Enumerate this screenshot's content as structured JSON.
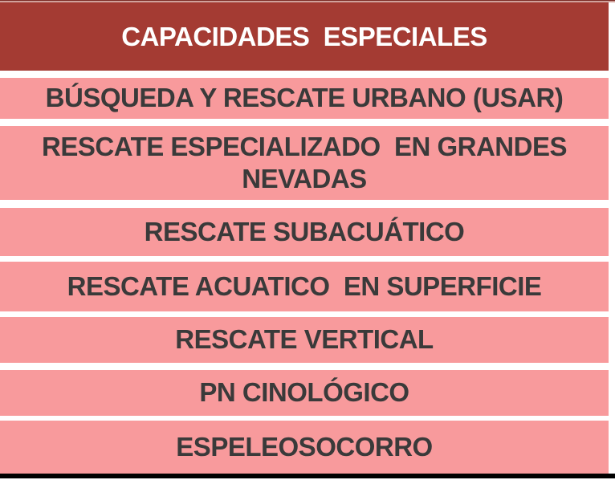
{
  "table": {
    "title": "CAPACIDADES  ESPECIALES",
    "rows": [
      "BÚSQUEDA Y RESCATE URBANO (USAR)",
      "RESCATE ESPECIALIZADO  EN GRANDES NEVADAS",
      "RESCATE SUBACUÁTICO",
      "RESCATE ACUATICO  EN SUPERFICIE",
      "RESCATE VERTICAL",
      "PN CINOLÓGICO",
      "ESPELEOSOCORRO"
    ]
  },
  "colors": {
    "header_bg": "#a43b33",
    "header_text": "#ffffff",
    "row_bg": "#f89a9c",
    "row_text": "#3a3a3a",
    "gap_bg": "#ffffff",
    "bottom_bar": "#000000",
    "top_edge_dark": "#7c2b26",
    "top_edge_light": "#d0a19b"
  }
}
